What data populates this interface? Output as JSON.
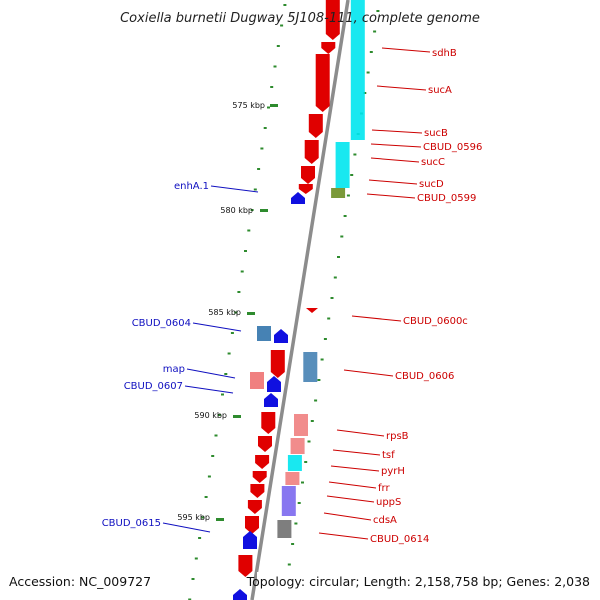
{
  "title": "Coxiella burnetii Dugway 5J108-111, complete genome",
  "footer": {
    "accession": "Accession: NC_009727",
    "summary": "Topology: circular; Length: 2,158,758 bp; Genes: 2,038"
  },
  "colors": {
    "backbone": "#8c8c8c",
    "tick": "#2e8b2e",
    "forward_gene": "#e00000",
    "reverse_gene": "#1010e0",
    "cog_cyan": "#00e5ee",
    "cog_pink": "#f08080",
    "cog_steelblue": "#4682b4",
    "cog_olive": "#6b8e23",
    "cog_purple": "#7b68ee",
    "cog_gray": "#707070",
    "label_forward": "#cc0000",
    "label_reverse": "#1010c0"
  },
  "scale_labels": [
    {
      "text": "575 kbp",
      "kbp": 575
    },
    {
      "text": "580 kbp",
      "kbp": 580
    },
    {
      "text": "585 kbp",
      "kbp": 585
    },
    {
      "text": "590 kbp",
      "kbp": 590
    },
    {
      "text": "595 kbp",
      "kbp": 595
    }
  ],
  "genes_reverse": [
    {
      "name": "enhA.1"
    },
    {
      "name": "CBUD_0604"
    },
    {
      "name": "map"
    },
    {
      "name": "CBUD_0607"
    },
    {
      "name": "CBUD_0615"
    }
  ],
  "genes_forward": [
    {
      "name": "sdhB"
    },
    {
      "name": "sucA"
    },
    {
      "name": "sucB"
    },
    {
      "name": "CBUD_0596"
    },
    {
      "name": "sucC"
    },
    {
      "name": "sucD"
    },
    {
      "name": "CBUD_0599"
    },
    {
      "name": "CBUD_0600c"
    },
    {
      "name": "CBUD_0606"
    },
    {
      "name": "rpsB"
    },
    {
      "name": "tsf"
    },
    {
      "name": "pyrH"
    },
    {
      "name": "frr"
    },
    {
      "name": "uppS"
    },
    {
      "name": "cdsA"
    },
    {
      "name": "CBUD_0614"
    }
  ]
}
